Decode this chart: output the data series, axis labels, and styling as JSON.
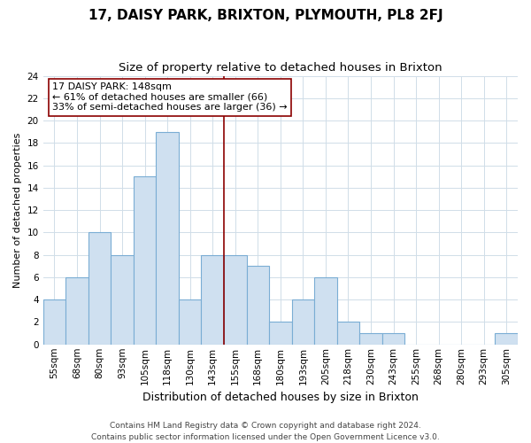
{
  "title": "17, DAISY PARK, BRIXTON, PLYMOUTH, PL8 2FJ",
  "subtitle": "Size of property relative to detached houses in Brixton",
  "xlabel": "Distribution of detached houses by size in Brixton",
  "ylabel": "Number of detached properties",
  "bar_labels": [
    "55sqm",
    "68sqm",
    "80sqm",
    "93sqm",
    "105sqm",
    "118sqm",
    "130sqm",
    "143sqm",
    "155sqm",
    "168sqm",
    "180sqm",
    "193sqm",
    "205sqm",
    "218sqm",
    "230sqm",
    "243sqm",
    "255sqm",
    "268sqm",
    "280sqm",
    "293sqm",
    "305sqm"
  ],
  "bar_values": [
    4,
    6,
    10,
    8,
    15,
    19,
    4,
    8,
    8,
    7,
    2,
    4,
    6,
    2,
    1,
    1,
    0,
    0,
    0,
    0,
    1
  ],
  "bar_color": "#cfe0f0",
  "bar_edge_color": "#7aadd4",
  "grid_color": "#d0dde8",
  "vline_color": "#8b0000",
  "annotation_box_text": "17 DAISY PARK: 148sqm\n← 61% of detached houses are smaller (66)\n33% of semi-detached houses are larger (36) →",
  "annotation_box_color": "#ffffff",
  "annotation_box_edge_color": "#8b0000",
  "ylim": [
    0,
    24
  ],
  "yticks": [
    0,
    2,
    4,
    6,
    8,
    10,
    12,
    14,
    16,
    18,
    20,
    22,
    24
  ],
  "footer_text": "Contains HM Land Registry data © Crown copyright and database right 2024.\nContains public sector information licensed under the Open Government Licence v3.0.",
  "title_fontsize": 11,
  "subtitle_fontsize": 9.5,
  "xlabel_fontsize": 9,
  "ylabel_fontsize": 8,
  "tick_fontsize": 7.5,
  "annotation_fontsize": 8,
  "footer_fontsize": 6.5
}
